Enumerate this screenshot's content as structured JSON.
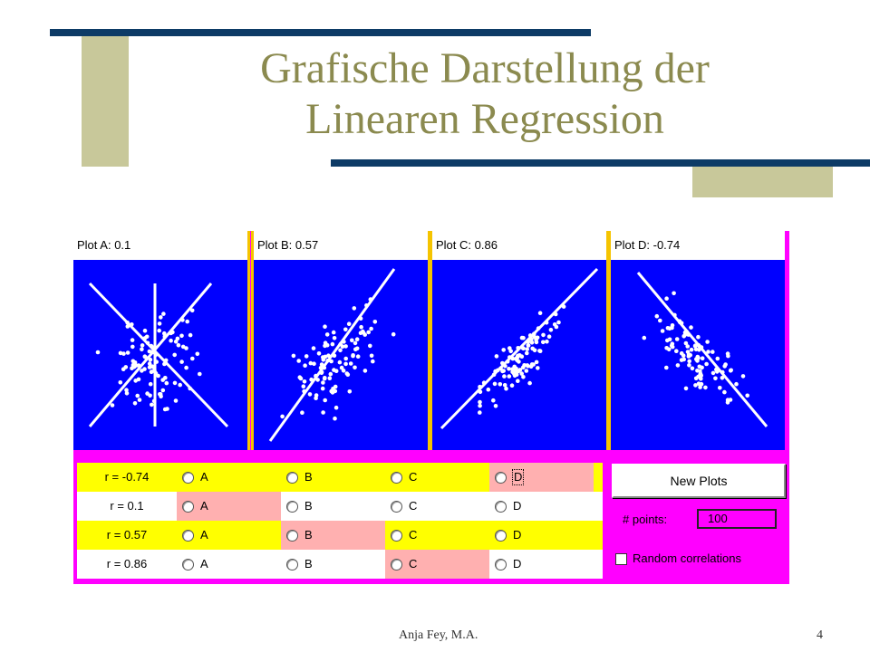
{
  "slide": {
    "title_line1": "Grafische Darstellung der",
    "title_line2": "Linearen Regression",
    "footer_author": "Anja Fey, M.A.",
    "page_number": "4"
  },
  "applet": {
    "plots": [
      {
        "id": "A",
        "label": "Plot A: 0.1"
      },
      {
        "id": "B",
        "label": "Plot B: 0.57"
      },
      {
        "id": "C",
        "label": "Plot C: 0.86"
      },
      {
        "id": "D",
        "label": "Plot D: -0.74"
      }
    ],
    "rows": [
      {
        "r_label": "r = -0.74",
        "highlight": "yellow",
        "selected": "D",
        "focused": "D"
      },
      {
        "r_label": "r = 0.1",
        "highlight": "white",
        "selected": "A",
        "focused": ""
      },
      {
        "r_label": "r = 0.57",
        "highlight": "yellow",
        "selected": "B",
        "focused": ""
      },
      {
        "r_label": "r = 0.86",
        "highlight": "white",
        "selected": "C",
        "focused": ""
      }
    ],
    "options": [
      "A",
      "B",
      "C",
      "D"
    ],
    "new_plots_label": "New Plots",
    "points_label": "# points:",
    "points_value": "100",
    "random_label": "Random correlations",
    "random_checked": false
  },
  "colors": {
    "plot_bg": "#0000ff",
    "points": "#ffffff",
    "applet_bg": "#ff00ff",
    "row_yellow": "#ffff00",
    "selected_cell": "#ffb0b0",
    "title": "#8b8a4f",
    "accent_bar": "#0d3b66"
  }
}
